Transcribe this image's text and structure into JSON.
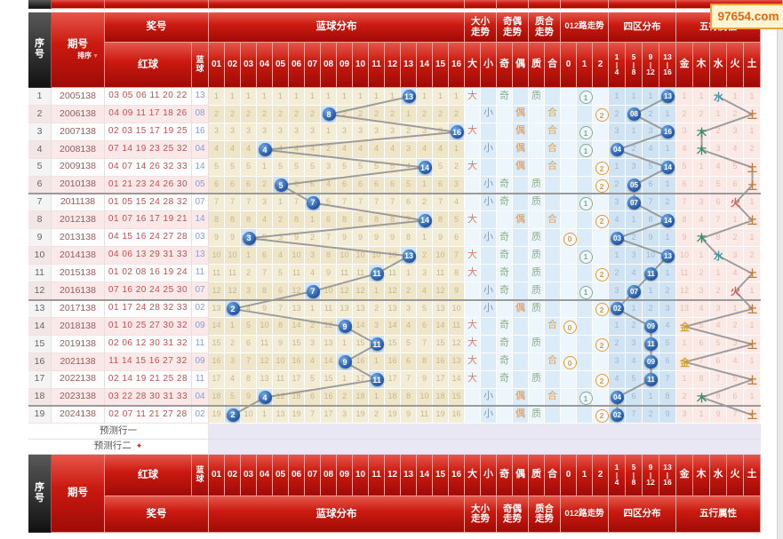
{
  "site": {
    "watermark": "97654.com"
  },
  "header": {
    "seq_label": "序号",
    "period_label": "期号",
    "sort_label": "排序",
    "sort_arrow": "▼",
    "prize_label": "奖号",
    "red_label": "红球",
    "blue_label": "蓝球",
    "dist_label": "蓝球分布",
    "ball_columns": [
      "01",
      "02",
      "03",
      "04",
      "05",
      "06",
      "07",
      "08",
      "09",
      "10",
      "11",
      "12",
      "13",
      "14",
      "15",
      "16"
    ],
    "big_small_label": "大小走势",
    "odd_even_label": "奇偶走势",
    "prime_comp_label": "质合走势",
    "route_label": "012路走势",
    "zone_label": "四区分布",
    "element_label": "五行属性",
    "big": "大",
    "small": "小",
    "odd": "奇",
    "even": "偶",
    "prime": "质",
    "comp": "合",
    "route_columns": [
      "0",
      "1",
      "2"
    ],
    "zone_columns": [
      "1\n|\n4",
      "5\n|\n8",
      "9\n|\n12",
      "13\n|\n16"
    ],
    "element_columns": [
      "金",
      "木",
      "水",
      "火",
      "土"
    ]
  },
  "rows": [
    {
      "seq": "1",
      "period": "2005138",
      "reds": "03 05 06 11 20 22",
      "blue": "13",
      "ball": 13,
      "size": "大",
      "parity": "奇",
      "pc": "质",
      "route": 1,
      "zone": 4,
      "element": "水"
    },
    {
      "seq": "2",
      "period": "2006138",
      "reds": "04 09 11 17 18 26",
      "blue": "08",
      "ball": 8,
      "size": "小",
      "parity": "偶",
      "pc": "合",
      "route": 2,
      "zone": 2,
      "element": "土"
    },
    {
      "seq": "3",
      "period": "2007138",
      "reds": "02 03 15 17 19 25",
      "blue": "16",
      "ball": 16,
      "size": "大",
      "parity": "偶",
      "pc": "合",
      "route": 1,
      "zone": 4,
      "element": "木"
    },
    {
      "seq": "4",
      "period": "2008138",
      "reds": "07 14 19 23 25 32",
      "blue": "04",
      "ball": 4,
      "size": "小",
      "parity": "偶",
      "pc": "合",
      "route": 1,
      "zone": 1,
      "element": "木"
    },
    {
      "seq": "5",
      "period": "2009138",
      "reds": "04 07 14 26 32 33",
      "blue": "14",
      "ball": 14,
      "size": "大",
      "parity": "偶",
      "pc": "合",
      "route": 2,
      "zone": 4,
      "element": "土"
    },
    {
      "seq": "6",
      "period": "2010138",
      "reds": "01 21 23 24 26 30",
      "blue": "05",
      "ball": 5,
      "size": "小",
      "parity": "奇",
      "pc": "质",
      "route": 2,
      "zone": 2,
      "element": "土"
    },
    {
      "seq": "7",
      "period": "2011138",
      "reds": "01 05 15 24 28 32",
      "blue": "07",
      "ball": 7,
      "size": "小",
      "parity": "奇",
      "pc": "质",
      "route": 1,
      "zone": 2,
      "element": "火"
    },
    {
      "seq": "8",
      "period": "2012138",
      "reds": "01 07 16 17 19 21",
      "blue": "14",
      "ball": 14,
      "size": "大",
      "parity": "偶",
      "pc": "合",
      "route": 2,
      "zone": 4,
      "element": "土"
    },
    {
      "seq": "9",
      "period": "2013138",
      "reds": "04 15 16 24 27 28",
      "blue": "03",
      "ball": 3,
      "size": "小",
      "parity": "奇",
      "pc": "质",
      "route": 0,
      "zone": 1,
      "element": "木"
    },
    {
      "seq": "10",
      "period": "2014138",
      "reds": "04 06 13 29 31 33",
      "blue": "13",
      "ball": 13,
      "size": "大",
      "parity": "奇",
      "pc": "质",
      "route": 1,
      "zone": 4,
      "element": "水"
    },
    {
      "seq": "11",
      "period": "2015138",
      "reds": "01 02 08 16 19 24",
      "blue": "11",
      "ball": 11,
      "size": "大",
      "parity": "奇",
      "pc": "质",
      "route": 2,
      "zone": 3,
      "element": "土"
    },
    {
      "seq": "12",
      "period": "2016138",
      "reds": "07 16 20 24 25 30",
      "blue": "07",
      "ball": 7,
      "size": "小",
      "parity": "奇",
      "pc": "质",
      "route": 1,
      "zone": 2,
      "element": "火"
    },
    {
      "seq": "13",
      "period": "2017138",
      "reds": "01 17 24 28 32 33",
      "blue": "02",
      "ball": 2,
      "size": "小",
      "parity": "偶",
      "pc": "质",
      "route": 2,
      "zone": 1,
      "element": "土"
    },
    {
      "seq": "14",
      "period": "2018138",
      "reds": "01 10 25 27 30 32",
      "blue": "09",
      "ball": 9,
      "size": "大",
      "parity": "奇",
      "pc": "合",
      "route": 0,
      "zone": 3,
      "element": "金"
    },
    {
      "seq": "15",
      "period": "2019138",
      "reds": "02 06 12 30 31 32",
      "blue": "11",
      "ball": 11,
      "size": "大",
      "parity": "奇",
      "pc": "质",
      "route": 2,
      "zone": 3,
      "element": "土"
    },
    {
      "seq": "16",
      "period": "2021138",
      "reds": "11 14 15 16 27 32",
      "blue": "09",
      "ball": 9,
      "size": "大",
      "parity": "奇",
      "pc": "合",
      "route": 0,
      "zone": 3,
      "element": "金"
    },
    {
      "seq": "17",
      "period": "2022138",
      "reds": "02 14 19 21 25 28",
      "blue": "11",
      "ball": 11,
      "size": "大",
      "parity": "奇",
      "pc": "质",
      "route": 2,
      "zone": 3,
      "element": "土"
    },
    {
      "seq": "18",
      "period": "2023138",
      "reds": "03 22 28 30 31 33",
      "blue": "04",
      "ball": 4,
      "size": "小",
      "parity": "偶",
      "pc": "合",
      "route": 1,
      "zone": 1,
      "element": "木"
    },
    {
      "seq": "19",
      "period": "2024138",
      "reds": "02 07 11 21 27 28",
      "blue": "02",
      "ball": 2,
      "size": "小",
      "parity": "偶",
      "pc": "质",
      "route": 2,
      "zone": 1,
      "element": "土"
    }
  ],
  "prediction_rows": [
    {
      "label": "预测行一",
      "icon": ""
    },
    {
      "label": "预测行二",
      "icon": "✦"
    }
  ],
  "colors": {
    "big": "#d97c6a",
    "small": "#7b98c8",
    "odd": "#8fae85",
    "even": "#d6904f",
    "prime": "#8fae85",
    "comp": "#d6a45f",
    "route0": "#e09a3a",
    "route1": "#8aab8a",
    "route2": "#e09a3a",
    "elem_金": "#d4a52a",
    "elem_木": "#2e8f66",
    "elem_水": "#3a98a0",
    "elem_火": "#e05555",
    "elem_土": "#c47a3a",
    "line": "#8f8f8f"
  }
}
